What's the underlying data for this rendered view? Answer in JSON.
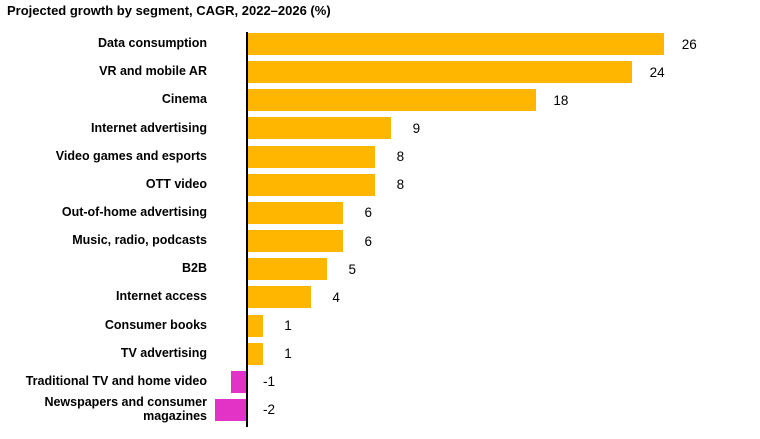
{
  "title": "Projected growth by segment, CAGR, 2022–2026 (%)",
  "chart_data": {
    "type": "bar",
    "orientation": "horizontal",
    "title": "Projected growth by segment, CAGR, 2022–2026 (%)",
    "xlabel": "",
    "ylabel": "",
    "categories": [
      "Data consumption",
      "VR and mobile AR",
      "Cinema",
      "Internet advertising",
      "Video games and esports",
      "OTT video",
      "Out-of-home advertising",
      "Music, radio, podcasts",
      "B2B",
      "Internet access",
      "Consumer books",
      "TV advertising",
      "Traditional TV and home video",
      "Newspapers and consumer magazines"
    ],
    "values": [
      26,
      24,
      18,
      9,
      8,
      8,
      6,
      6,
      5,
      4,
      1,
      1,
      -1,
      -2
    ],
    "value_labels": [
      "26",
      "24",
      "18",
      "9",
      "8",
      "8",
      "6",
      "6",
      "5",
      "4",
      "1",
      "1",
      "-1",
      "-2"
    ],
    "xlim": [
      -2,
      32
    ],
    "grid": false,
    "legend": null,
    "baseline_at": 0,
    "colors": {
      "positive_bar": "#FFB600",
      "negative_bar": "#E233C6",
      "axis": "#000000",
      "text": "#000000",
      "background": "#FFFFFF"
    }
  }
}
